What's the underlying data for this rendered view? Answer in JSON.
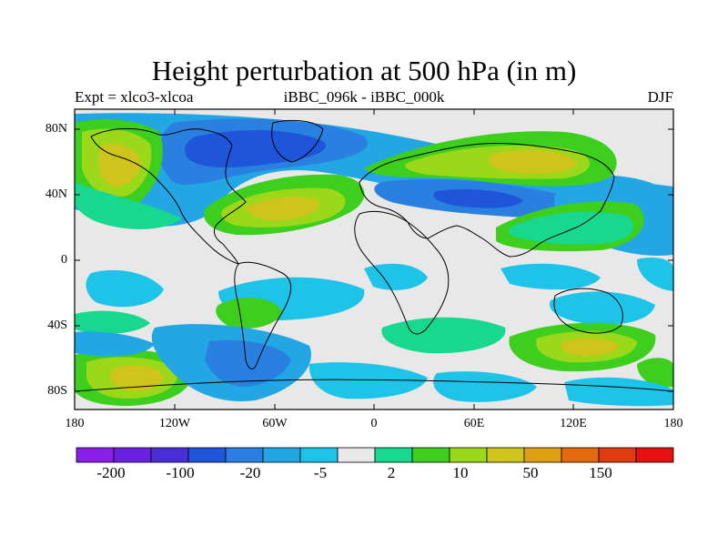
{
  "title": "Height perturbation at 500 hPa (in m)",
  "left_label": "Expt = xlco3-xlcoa",
  "center_label": "iBBC_096k - iBBC_000k",
  "right_label": "DJF",
  "lat_labels": [
    "80N",
    "40N",
    "0",
    "40S",
    "80S"
  ],
  "lon_labels": [
    "180",
    "120W",
    "60W",
    "0",
    "60E",
    "120E",
    "180"
  ],
  "colorbar": {
    "labels": [
      "-200",
      "-100",
      "-20",
      "-5",
      "2",
      "10",
      "50",
      "150"
    ],
    "colors": [
      "#8a1fe8",
      "#6a20e0",
      "#4a2ed8",
      "#1f55d8",
      "#2a80e0",
      "#22a6e4",
      "#1ec4e8",
      "#e8e8e8",
      "#17d88e",
      "#3ecf1e",
      "#9cd81a",
      "#cfc41b",
      "#e0a016",
      "#e26a10",
      "#e03a10",
      "#e51010"
    ]
  },
  "palette": {
    "neutral": "#e8e8e8",
    "cyan": "#1ec4e8",
    "lightblue": "#22a6e4",
    "blue": "#2a80e0",
    "darkblue": "#1f55d8",
    "seagreen": "#17d88e",
    "green": "#3ecf1e",
    "lime": "#9cd81a",
    "olive": "#cfc41b",
    "orange": "#e0a016"
  }
}
